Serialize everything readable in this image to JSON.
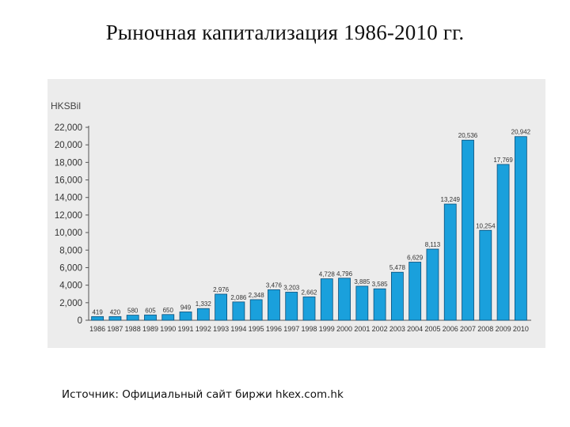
{
  "slide": {
    "title": "Рыночная капитализация 1986-2010 гг.",
    "source": "Источник: Официальный сайт биржи hkex.com.hk"
  },
  "chart_data": {
    "type": "bar",
    "title": "",
    "ylabel": "HKSBil",
    "xlabel": "",
    "ylim": [
      0,
      22000
    ],
    "yticks": [
      0,
      2000,
      4000,
      6000,
      8000,
      10000,
      12000,
      14000,
      16000,
      18000,
      20000,
      22000
    ],
    "ytick_labels": [
      "0",
      "2,000",
      "4,000",
      "6,000",
      "8,000",
      "10,000",
      "12,000",
      "14,000",
      "16,000",
      "18,000",
      "20,000",
      "22,000"
    ],
    "categories": [
      "1986",
      "1987",
      "1988",
      "1989",
      "1990",
      "1991",
      "1992",
      "1993",
      "1994",
      "1995",
      "1996",
      "1997",
      "1998",
      "1999",
      "2000",
      "2001",
      "2002",
      "2003",
      "2004",
      "2005",
      "2006",
      "2007",
      "2008",
      "2009",
      "2010"
    ],
    "values": [
      419,
      420,
      580,
      605,
      650,
      949,
      1332,
      2976,
      2086,
      2348,
      3476,
      3203,
      2662,
      4728,
      4796,
      3885,
      3585,
      5478,
      6629,
      8113,
      13249,
      20536,
      10254,
      17769,
      20942
    ],
    "value_labels": [
      "419",
      "420",
      "580",
      "605",
      "650",
      "949",
      "1,332",
      "2,976",
      "2,086",
      "2,348",
      "3,476",
      "3,203",
      "2,662",
      "4,728",
      "4,796",
      "3,885",
      "3,585",
      "5,478",
      "6,629",
      "8,113",
      "13,249",
      "20,536",
      "10,254",
      "17,769",
      "20,942"
    ],
    "colors": {
      "bar_fill": "#1aa0dc",
      "bar_stroke": "#0b4f7a",
      "axis": "#555555",
      "panel": "#ececec"
    }
  }
}
